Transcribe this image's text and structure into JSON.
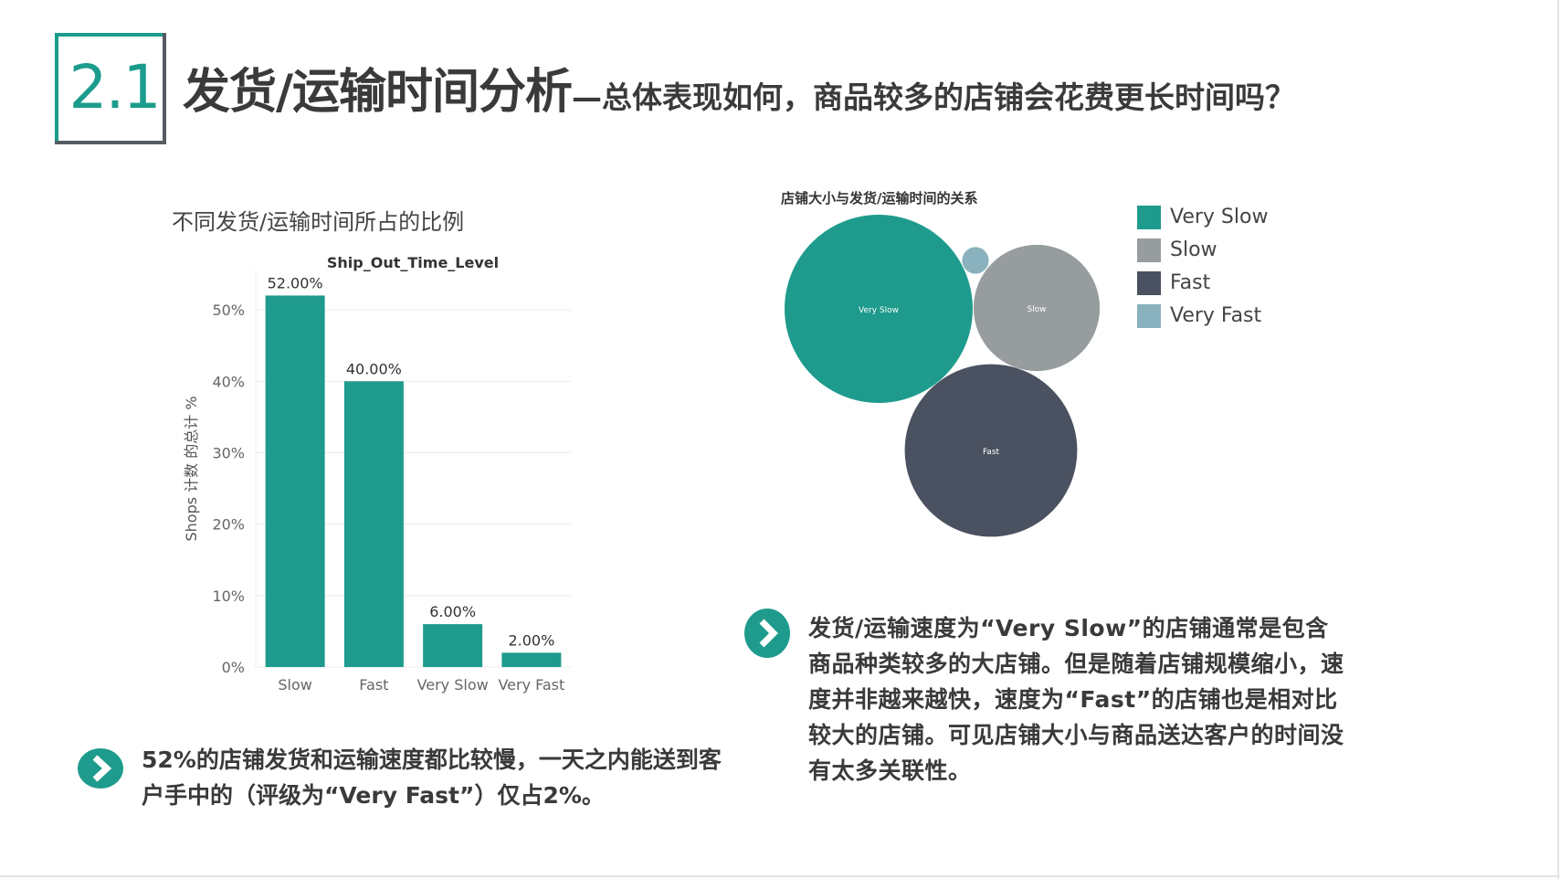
{
  "header": {
    "section_number": "2.1",
    "title": "发货/运输时间分析",
    "subtitle": "—总体表现如何，商品较多的店铺会花费更长时间吗？"
  },
  "bar_panel_title": "不同发货/运输时间所占的比例",
  "bubble_panel_title": "店铺大小与发货/运输时间的关系",
  "chart_data": [
    {
      "type": "bar",
      "title": "Ship_Out_Time_Level",
      "ylabel": "Shops 计数 的总计 %",
      "xlabel": "",
      "categories": [
        "Slow",
        "Fast",
        "Very Slow",
        "Very Fast"
      ],
      "values": [
        52.0,
        40.0,
        6.0,
        2.0
      ],
      "data_labels": [
        "52.00%",
        "40.00%",
        "6.00%",
        "2.00%"
      ],
      "ylim": [
        0,
        55
      ],
      "yticks": [
        0,
        10,
        20,
        30,
        40,
        50
      ],
      "ytick_labels": [
        "0%",
        "10%",
        "20%",
        "30%",
        "40%",
        "50%"
      ],
      "grid": true,
      "bar_color": "#1e9b8c"
    },
    {
      "type": "bubble",
      "title": "店铺大小与发货/运输时间的关系",
      "series": [
        {
          "name": "Very Slow",
          "label": "Very Slow",
          "value": 100,
          "color": "#1e9b8c"
        },
        {
          "name": "Slow",
          "label": "Slow",
          "value": 45,
          "color": "#979c9e"
        },
        {
          "name": "Fast",
          "label": "Fast",
          "value": 84,
          "color": "#4a5160"
        },
        {
          "name": "Very Fast",
          "label": "",
          "value": 2,
          "color": "#8ab2be"
        }
      ],
      "legend": [
        "Very Slow",
        "Slow",
        "Fast",
        "Very Fast"
      ],
      "legend_position": "right"
    }
  ],
  "notes": {
    "left": "52%的店铺发货和运输速度都比较慢，一天之内能送到客户手中的（评级为“Very Fast”）仅占2%。",
    "right": "发货/运输速度为“Very Slow”的店铺通常是包含商品种类较多的大店铺。但是随着店铺规模缩小，速度并非越来越快，速度为“Fast”的店铺也是相对比较大的店铺。可见店铺大小与商品送达客户的时间没有太多关联性。"
  },
  "colors": {
    "accent": "#1e9b8c",
    "badge_border": "#555b61",
    "text": "#3a3a3a"
  },
  "icons": {
    "left_bullet": "chevron-right-circle-icon",
    "right_bullet": "chevron-right-circle-icon"
  }
}
